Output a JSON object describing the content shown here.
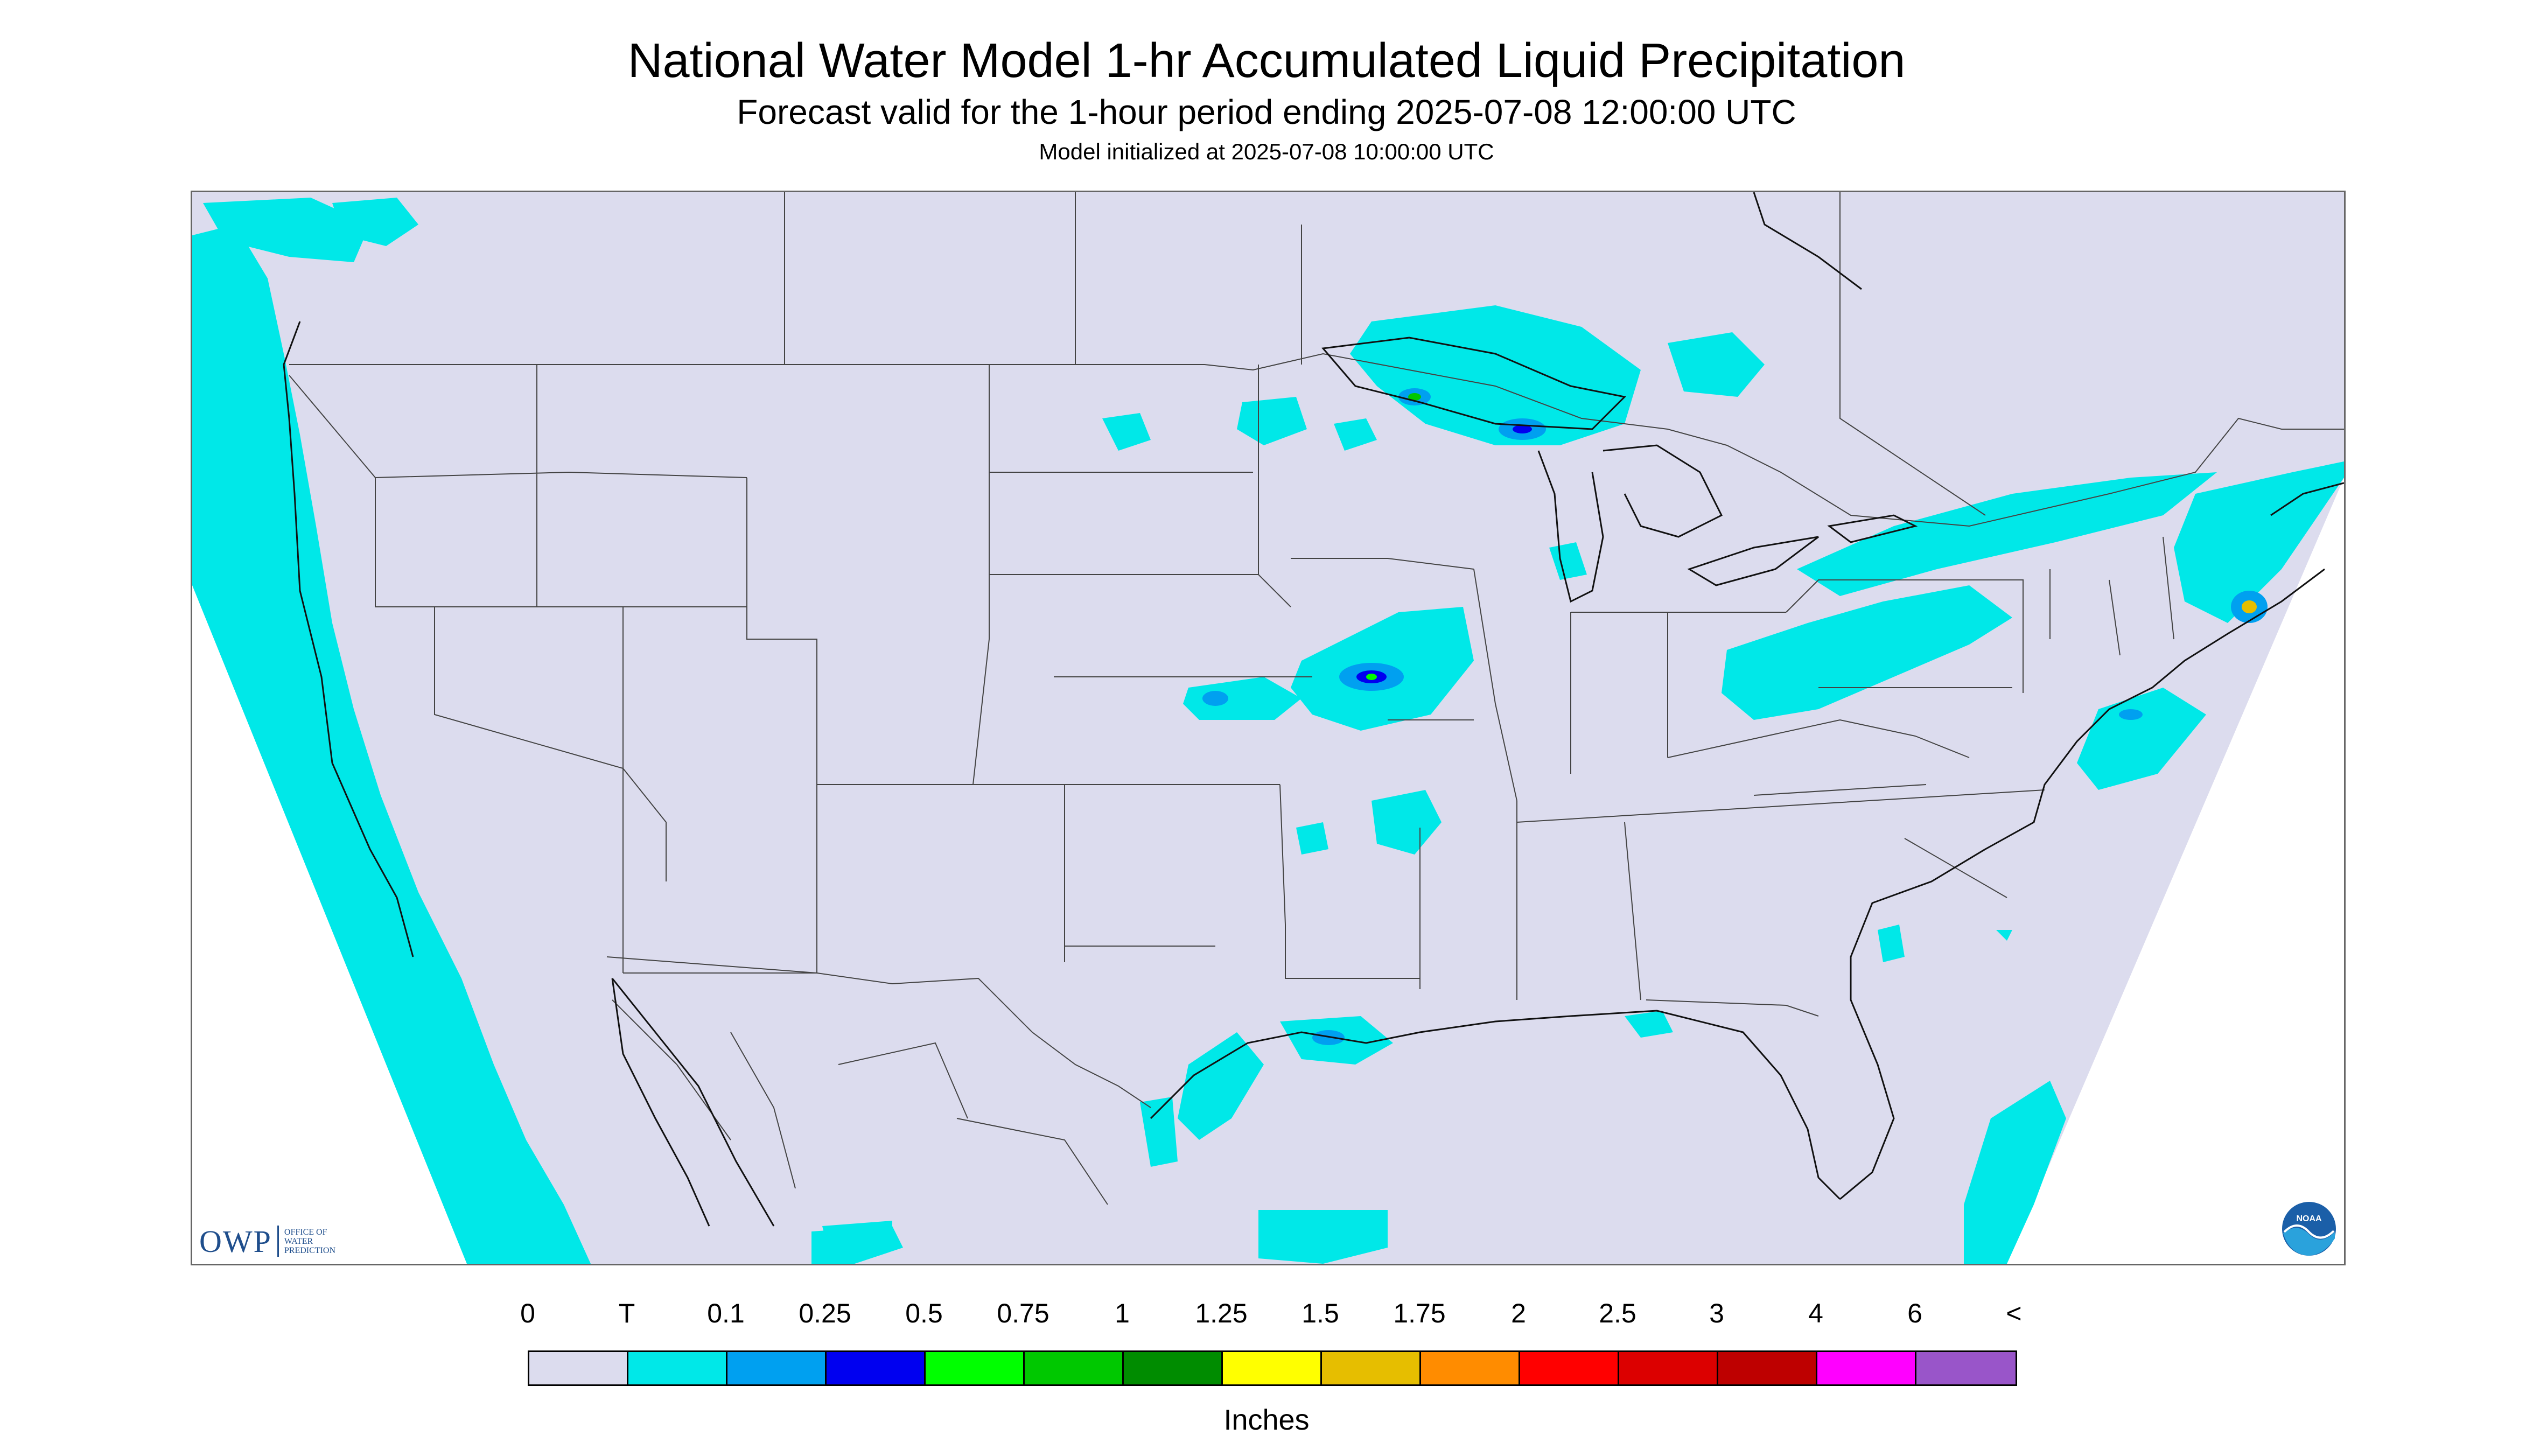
{
  "header": {
    "title": "National Water Model 1-hr Accumulated Liquid Precipitation",
    "subtitle": "Forecast valid for the 1-hour period ending 2025-07-08 12:00:00 UTC",
    "init_line": "Model initialized at 2025-07-08 10:00:00 UTC"
  },
  "logos": {
    "owp_text": "OWP",
    "owp_subtext": [
      "OFFICE OF",
      "WATER",
      "PREDICTION"
    ],
    "noaa_text": "NOAA"
  },
  "legend": {
    "labels": [
      "0",
      "T",
      "0.1",
      "0.25",
      "0.5",
      "0.75",
      "1",
      "1.25",
      "1.5",
      "1.75",
      "2",
      "2.5",
      "3",
      "4",
      "6",
      "<"
    ],
    "colors": [
      "#dcdcee",
      "#00e8e8",
      "#00a0f0",
      "#0000f0",
      "#00ff00",
      "#00c800",
      "#008c00",
      "#ffff00",
      "#e6be00",
      "#ff8c00",
      "#ff0000",
      "#dc0000",
      "#be0000",
      "#ff00ff",
      "#9955c9"
    ],
    "units": "Inches"
  },
  "map": {
    "background_color": "#dcdcee",
    "outside_color": "#ffffff",
    "trace_color": "#00e8e8",
    "light_color": "#00a0f0",
    "moderate_color": "#0000f0",
    "heavy_color": "#00ff00"
  }
}
